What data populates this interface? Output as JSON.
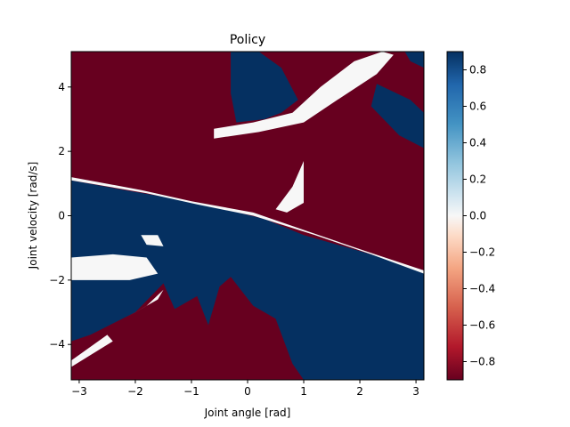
{
  "chart_data": {
    "type": "heatmap",
    "title": "Policy",
    "xlabel": "Joint angle [rad]",
    "ylabel": "Joint velocity [rad/s]",
    "xlim": [
      -3.1416,
      3.1416
    ],
    "ylim": [
      -5.1,
      5.1
    ],
    "xticks": [
      -3,
      -2,
      -1,
      0,
      1,
      2,
      3
    ],
    "xtick_labels": [
      "−3",
      "−2",
      "−1",
      "0",
      "1",
      "2",
      "3"
    ],
    "yticks": [
      -4,
      -2,
      0,
      2,
      4
    ],
    "ytick_labels": [
      "−4",
      "−2",
      "0",
      "2",
      "4"
    ],
    "colorbar": {
      "vmin": -0.9,
      "vmax": 0.9,
      "colormap": "RdBu",
      "ticks": [
        -0.8,
        -0.6,
        -0.4,
        -0.2,
        0.0,
        0.2,
        0.4,
        0.6,
        0.8
      ],
      "tick_labels": [
        "−0.8",
        "−0.6",
        "−0.4",
        "−0.2",
        "0.0",
        "0.2",
        "0.4",
        "0.6",
        "0.8"
      ]
    },
    "colors": {
      "negative": "#67001f",
      "zero": "#f7f7f7",
      "positive": "#053061"
    },
    "regions": [
      {
        "value": -0.9,
        "polygon": [
          [
            -3.1416,
            5.1
          ],
          [
            3.1416,
            5.1
          ],
          [
            3.1416,
            -5.1
          ],
          [
            -3.1416,
            -5.1
          ]
        ]
      },
      {
        "value": 0.9,
        "polygon": [
          [
            -3.1416,
            1.1
          ],
          [
            -2.2,
            0.8
          ],
          [
            -1.2,
            0.5
          ],
          [
            -0.4,
            0.2
          ],
          [
            0.3,
            -0.1
          ],
          [
            1.0,
            -0.6
          ],
          [
            2.0,
            -1.1
          ],
          [
            3.1416,
            -1.7
          ],
          [
            3.1416,
            -5.1
          ],
          [
            1.0,
            -5.1
          ],
          [
            0.8,
            -4.6
          ],
          [
            0.5,
            -3.2
          ],
          [
            0.1,
            -2.8
          ],
          [
            -0.3,
            -1.9
          ],
          [
            -0.5,
            -2.2
          ],
          [
            -0.7,
            -3.4
          ],
          [
            -0.9,
            -2.5
          ],
          [
            -1.3,
            -2.9
          ],
          [
            -1.5,
            -2.1
          ],
          [
            -2.0,
            -3.0
          ],
          [
            -2.8,
            -3.7
          ],
          [
            -3.1416,
            -3.9
          ]
        ]
      },
      {
        "value": 0.9,
        "polygon": [
          [
            -0.3,
            5.1
          ],
          [
            0.2,
            5.1
          ],
          [
            0.6,
            4.6
          ],
          [
            0.9,
            3.6
          ],
          [
            0.6,
            3.2
          ],
          [
            0.3,
            3.0
          ],
          [
            -0.2,
            2.9
          ],
          [
            -0.3,
            3.8
          ]
        ]
      },
      {
        "value": 0.9,
        "polygon": [
          [
            2.3,
            4.1
          ],
          [
            2.9,
            3.6
          ],
          [
            3.1416,
            3.2
          ],
          [
            3.1416,
            2.1
          ],
          [
            2.7,
            2.5
          ],
          [
            2.2,
            3.4
          ]
        ]
      },
      {
        "value": 0.9,
        "polygon": [
          [
            2.8,
            5.1
          ],
          [
            3.1416,
            5.1
          ],
          [
            3.1416,
            4.6
          ],
          [
            2.9,
            4.8
          ]
        ]
      },
      {
        "value": 0.0,
        "polygon": [
          [
            -0.6,
            2.4
          ],
          [
            0.2,
            2.6
          ],
          [
            1.0,
            2.9
          ],
          [
            1.6,
            3.6
          ],
          [
            2.3,
            4.4
          ],
          [
            2.6,
            5.0
          ],
          [
            2.4,
            5.1
          ],
          [
            1.9,
            4.8
          ],
          [
            1.3,
            4.0
          ],
          [
            0.8,
            3.2
          ],
          [
            0.1,
            2.9
          ],
          [
            -0.6,
            2.7
          ]
        ]
      },
      {
        "value": 0.0,
        "polygon": [
          [
            0.5,
            0.2
          ],
          [
            0.8,
            0.9
          ],
          [
            1.0,
            1.7
          ],
          [
            1.0,
            0.4
          ],
          [
            0.7,
            0.1
          ]
        ]
      },
      {
        "value": 0.0,
        "polygon": [
          [
            -3.1416,
            -1.3
          ],
          [
            -2.4,
            -1.2
          ],
          [
            -1.8,
            -1.3
          ],
          [
            -1.6,
            -1.8
          ],
          [
            -2.1,
            -2.0
          ],
          [
            -3.1416,
            -2.0
          ]
        ]
      },
      {
        "value": 0.0,
        "polygon": [
          [
            -2.2,
            -3.2
          ],
          [
            -1.6,
            -2.6
          ],
          [
            -1.5,
            -2.3
          ],
          [
            -1.8,
            -2.8
          ]
        ]
      },
      {
        "value": 0.0,
        "polygon": [
          [
            -3.1416,
            -4.5
          ],
          [
            -2.5,
            -3.7
          ],
          [
            -2.4,
            -3.9
          ],
          [
            -3.1416,
            -4.7
          ]
        ]
      },
      {
        "value": 0.0,
        "polygon": [
          [
            -3.1416,
            1.1
          ],
          [
            -1.8,
            0.7
          ],
          [
            -0.9,
            0.35
          ],
          [
            0.1,
            0.0
          ],
          [
            1.2,
            -0.6
          ],
          [
            2.2,
            -1.2
          ],
          [
            3.1416,
            -1.8
          ],
          [
            3.1416,
            -1.7
          ],
          [
            2.1,
            -1.1
          ],
          [
            1.1,
            -0.5
          ],
          [
            0.1,
            0.1
          ],
          [
            -1.0,
            0.45
          ],
          [
            -1.9,
            0.8
          ],
          [
            -3.1416,
            1.2
          ]
        ]
      },
      {
        "value": 0.0,
        "polygon": [
          [
            -1.9,
            -0.6
          ],
          [
            -1.6,
            -0.6
          ],
          [
            -1.5,
            -0.95
          ],
          [
            -1.8,
            -0.9
          ]
        ]
      }
    ]
  }
}
